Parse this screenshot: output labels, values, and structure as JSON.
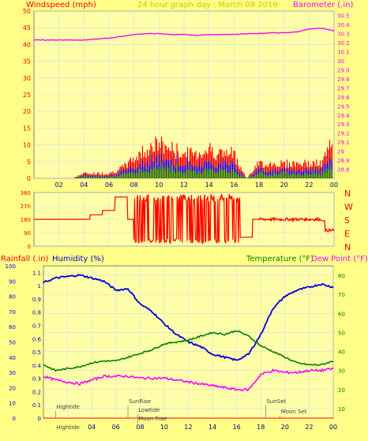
{
  "colors": {
    "background": "#FFFF88",
    "plot_bg": "#FFFFAA",
    "grid": "#D8D8D8",
    "frame": "#808080",
    "wind": "#FF0000",
    "wind_avg": "#0000FF",
    "wind_low": "#008000",
    "baro": "#FF00FF",
    "humidity": "#0000DD",
    "temperature": "#008000",
    "dewpoint": "#FF00FF",
    "rain": "#FF0000",
    "title": "#C8C800",
    "dir_letters": "#FF0000"
  },
  "header": {
    "left_label": "Windspeed (mph)",
    "title": "24 hour graph day : March 09 2019",
    "right_label": "Barometer (.in)"
  },
  "x_axis": {
    "ticks": [
      "02",
      "04",
      "06",
      "08",
      "10",
      "12",
      "14",
      "16",
      "18",
      "20",
      "22",
      "00"
    ]
  },
  "chart_data": [
    {
      "type": "line",
      "title": "24 hour graph day : March 09 2019",
      "x": [
        0,
        1,
        2,
        3,
        4,
        5,
        6,
        7,
        8,
        9,
        10,
        11,
        12,
        13,
        14,
        15,
        16,
        17,
        18,
        19,
        20,
        21,
        22,
        23,
        24
      ],
      "series": [
        {
          "name": "Windspeed (mph)",
          "axis": "left",
          "values": [
            0,
            0,
            0,
            0,
            1,
            1,
            1,
            2,
            4,
            6,
            7,
            6,
            5,
            5,
            6,
            5,
            5,
            0,
            3,
            3,
            3,
            3,
            3,
            3,
            8
          ]
        },
        {
          "name": "Barometer (.in)",
          "axis": "right",
          "values": [
            30.23,
            30.23,
            30.23,
            30.23,
            30.23,
            30.24,
            30.25,
            30.27,
            30.29,
            30.3,
            30.3,
            30.29,
            30.29,
            30.28,
            30.29,
            30.29,
            30.29,
            30.3,
            30.3,
            30.31,
            30.31,
            30.32,
            30.35,
            30.36,
            30.33
          ]
        }
      ],
      "y_left": {
        "ticks": [
          "0",
          "5",
          "10",
          "15",
          "20",
          "25",
          "30",
          "35",
          "40",
          "45",
          "50"
        ],
        "lim": [
          0,
          50
        ]
      },
      "y_right": {
        "ticks": [
          "28.8",
          "28.9",
          "29",
          "29.1",
          "29.2",
          "29.3",
          "29.4",
          "29.5",
          "29.6",
          "29.7",
          "29.8",
          "29.9",
          "30",
          "30.1",
          "30.2",
          "30.3",
          "30.4",
          "30.5"
        ],
        "lim": [
          28.7,
          30.55
        ]
      }
    },
    {
      "type": "line",
      "x": [
        0,
        1,
        2,
        3,
        4,
        5,
        6,
        7,
        8,
        9,
        10,
        11,
        12,
        13,
        14,
        15,
        16,
        17,
        18,
        19,
        20,
        21,
        22,
        23,
        24
      ],
      "series": [
        {
          "name": "Wind direction",
          "values": [
            180,
            180,
            180,
            180,
            180,
            210,
            240,
            330,
            180,
            180,
            180,
            180,
            180,
            180,
            180,
            180,
            180,
            60,
            180,
            190,
            185,
            180,
            180,
            170,
            110
          ]
        }
      ],
      "y": {
        "ticks": [
          "0",
          "90",
          "180",
          "270",
          "360"
        ],
        "lim": [
          0,
          360
        ]
      },
      "direction_letters": [
        "N",
        "W",
        "S",
        "E",
        "N"
      ]
    },
    {
      "type": "line",
      "x": [
        0,
        1,
        2,
        3,
        4,
        5,
        6,
        7,
        8,
        9,
        10,
        11,
        12,
        13,
        14,
        15,
        16,
        17,
        18,
        19,
        20,
        21,
        22,
        23,
        24
      ],
      "series": [
        {
          "name": "Humidity (%)",
          "axis": "left2",
          "values": [
            89,
            92,
            93,
            94,
            92,
            90,
            84,
            85,
            75,
            70,
            62,
            55,
            50,
            47,
            42,
            40,
            38,
            42,
            55,
            72,
            80,
            84,
            86,
            88,
            86
          ]
        },
        {
          "name": "Temperature (°F)",
          "axis": "right",
          "values": [
            33,
            30,
            31,
            32,
            34,
            35,
            35,
            37,
            39,
            41,
            44,
            45,
            46,
            48,
            50,
            49,
            51,
            48,
            43,
            40,
            37,
            34,
            33,
            33,
            35
          ]
        },
        {
          "name": "Dew Point (°F)",
          "axis": "right",
          "values": [
            27,
            25,
            24,
            23,
            25,
            27,
            27,
            27,
            26,
            26,
            26,
            25,
            24,
            23,
            22,
            21,
            20,
            20,
            28,
            30,
            29,
            29,
            30,
            30,
            31
          ]
        },
        {
          "name": "Rainfall (.in)",
          "axis": "left",
          "values": [
            0,
            0,
            0,
            0,
            0,
            0,
            0,
            0,
            0,
            0,
            0,
            0,
            0,
            0,
            0,
            0,
            0,
            0,
            0,
            0,
            0,
            0,
            0,
            0,
            0
          ]
        }
      ],
      "y_left": {
        "label": "Rainfall (.in)",
        "ticks": [
          "0",
          "0.1",
          "0.2",
          "0.3",
          "0.4",
          "0.5",
          "0.6",
          "0.7",
          "0.8",
          "0.9",
          "1",
          "1.1"
        ],
        "lim": [
          0,
          1.15
        ]
      },
      "y_left2": {
        "label": "Humidity (%)",
        "ticks": [
          "0",
          "10",
          "20",
          "30",
          "40",
          "50",
          "60",
          "70",
          "80",
          "90",
          "100"
        ],
        "lim": [
          0,
          100
        ]
      },
      "y_right": {
        "ticks": [
          "10",
          "20",
          "30",
          "40",
          "50",
          "60",
          "70",
          "80"
        ],
        "lim": [
          5,
          85
        ]
      },
      "annotations": [
        {
          "text": "Hightide",
          "x": 1.0
        },
        {
          "text": "SunRise",
          "x": 7.0
        },
        {
          "text": "Lowtide",
          "x": 7.8
        },
        {
          "text": "Moon Rise",
          "x": 7.8
        },
        {
          "text": "SunSet",
          "x": 18.4
        },
        {
          "text": "Moon Set",
          "x": 19.6
        },
        {
          "text": "Hightide",
          "x": 1.0
        }
      ]
    }
  ],
  "bottom_labels": {
    "left_label": "Rainfall (.in)",
    "mid_label": "Humidity (%)",
    "right_label": "Temperature (°F)",
    "right_label2": "Dew Point (°F)"
  }
}
